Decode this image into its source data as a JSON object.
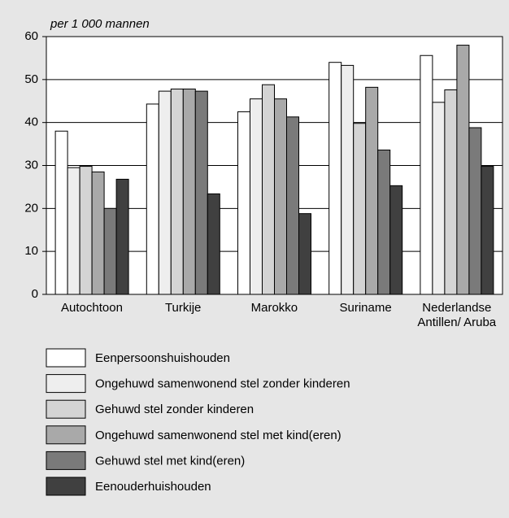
{
  "chart_data": {
    "type": "bar",
    "y_axis_label": "per 1 000 mannen",
    "categories": [
      "Autochtoon",
      "Turkije",
      "Marokko",
      "Suriname",
      "Nederlandse Antillen/ Aruba"
    ],
    "series": [
      {
        "name": "Eenpersoonshuishouden",
        "color": "#ffffff",
        "values": [
          38,
          44.3,
          42.5,
          54,
          55.6
        ]
      },
      {
        "name": "Ongehuwd samenwonend stel zonder kinderen",
        "color": "#eeeeee",
        "values": [
          29.5,
          47.3,
          45.5,
          53.3,
          44.7
        ]
      },
      {
        "name": "Gehuwd stel zonder kinderen",
        "color": "#d4d4d4",
        "values": [
          29.8,
          47.8,
          48.8,
          39.8,
          47.6
        ]
      },
      {
        "name": "Ongehuwd samenwonend stel met kind(eren)",
        "color": "#a9a9a9",
        "values": [
          28.5,
          47.8,
          45.5,
          48.2,
          58
        ]
      },
      {
        "name": "Gehuwd stel met kind(eren)",
        "color": "#7a7a7a",
        "values": [
          20,
          47.3,
          41.3,
          33.6,
          38.8
        ]
      },
      {
        "name": "Eenouderhuishouden",
        "color": "#404040",
        "values": [
          26.8,
          23.4,
          18.8,
          25.3,
          29.8
        ]
      }
    ],
    "ylim": [
      0,
      60
    ],
    "yticks": [
      0,
      10,
      20,
      30,
      40,
      50,
      60
    ],
    "grid": true
  }
}
